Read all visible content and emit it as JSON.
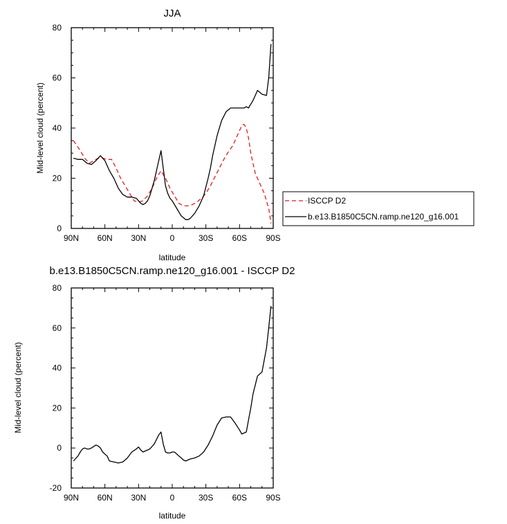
{
  "chart_data": [
    {
      "type": "line",
      "title": "JJA",
      "xlabel": "latitude",
      "ylabel": "Mid-level cloud (percent)",
      "xlim": [
        -90,
        90
      ],
      "ylim": [
        0,
        80
      ],
      "x_ticks": [
        -90,
        -60,
        -30,
        0,
        30,
        60,
        90
      ],
      "x_tick_labels": [
        "90N",
        "60N",
        "30N",
        "0",
        "30S",
        "60S",
        "90S"
      ],
      "y_ticks": [
        0,
        20,
        40,
        60,
        80
      ],
      "y_tick_labels": [
        "0",
        "20",
        "40",
        "60",
        "80"
      ],
      "legend_position": "right",
      "series": [
        {
          "name": "ISCCP D2",
          "color": "#e8191c",
          "dash": "dashed",
          "x": [
            -88,
            -82,
            -78,
            -74,
            -70,
            -66,
            -62,
            -58,
            -54,
            -50,
            -46,
            -42,
            -38,
            -34,
            -30,
            -26,
            -22,
            -18,
            -14,
            -10,
            -6,
            -2,
            2,
            6,
            10,
            14,
            18,
            22,
            26,
            30,
            34,
            38,
            42,
            46,
            50,
            54,
            58,
            62,
            64,
            66,
            68,
            70,
            74,
            78,
            82,
            86,
            88
          ],
          "values": [
            35,
            31,
            28,
            26,
            27,
            28,
            28,
            27.5,
            27.5,
            24,
            20,
            17,
            14,
            11,
            10.5,
            11,
            13,
            16,
            20,
            23,
            20,
            16,
            13,
            10,
            9,
            9,
            9.5,
            10.5,
            12,
            14,
            17,
            20.5,
            24,
            27.5,
            30.5,
            33,
            37,
            41,
            41.5,
            40,
            36,
            30,
            22,
            18,
            14,
            8,
            2
          ]
        },
        {
          "name": "b.e13.B1850C5CN.ramp.ne120_g16.001",
          "color": "#000000",
          "dash": "solid",
          "x": [
            -88,
            -84,
            -80,
            -76,
            -72,
            -68,
            -64,
            -60,
            -56,
            -52,
            -48,
            -44,
            -40,
            -36,
            -32,
            -28,
            -26,
            -24,
            -22,
            -20,
            -16,
            -12,
            -10,
            -8,
            -6,
            -4,
            -2,
            0,
            4,
            8,
            12,
            14,
            16,
            20,
            24,
            28,
            32,
            34,
            36,
            40,
            44,
            48,
            52,
            56,
            60,
            64,
            66,
            68,
            72,
            76,
            80,
            84,
            86,
            88
          ],
          "values": [
            28,
            27.5,
            27.5,
            26,
            25.5,
            27,
            29,
            27,
            23,
            20,
            16,
            13.5,
            12.5,
            12.5,
            12,
            10,
            9.5,
            10,
            11,
            13,
            19,
            27,
            31,
            24,
            17,
            14,
            12,
            11,
            8,
            5,
            3.5,
            3.5,
            4,
            6,
            9,
            13,
            20,
            24,
            29,
            37,
            43,
            46.5,
            48,
            48,
            48,
            48,
            48.5,
            48,
            51,
            55,
            53.5,
            53,
            60,
            73.5
          ]
        }
      ]
    },
    {
      "type": "line",
      "title": "b.e13.B1850C5CN.ramp.ne120_g16.001 - ISCCP D2",
      "xlabel": "latitude",
      "ylabel": "Mid-level cloud (percent)",
      "xlim": [
        -90,
        90
      ],
      "ylim": [
        -20,
        80
      ],
      "x_ticks": [
        -90,
        -60,
        -30,
        0,
        30,
        60,
        90
      ],
      "x_tick_labels": [
        "90N",
        "60N",
        "30N",
        "0",
        "30S",
        "60S",
        "90S"
      ],
      "y_ticks": [
        -20,
        0,
        20,
        40,
        60,
        80
      ],
      "y_tick_labels": [
        "-20",
        "0",
        "20",
        "40",
        "60",
        "80"
      ],
      "series": [
        {
          "color": "#000000",
          "dash": "solid",
          "x": [
            -88,
            -84,
            -82,
            -80,
            -78,
            -76,
            -74,
            -72,
            -68,
            -66,
            -64,
            -62,
            -58,
            -56,
            -52,
            -48,
            -44,
            -40,
            -36,
            -32,
            -30,
            -28,
            -26,
            -24,
            -22,
            -20,
            -16,
            -12,
            -10,
            -8,
            -6,
            -4,
            -2,
            0,
            2,
            4,
            6,
            8,
            10,
            12,
            14,
            16,
            20,
            24,
            28,
            32,
            36,
            40,
            44,
            48,
            52,
            56,
            60,
            62,
            64,
            66,
            68,
            70,
            72,
            76,
            80,
            84,
            86,
            88
          ],
          "values": [
            -6.5,
            -4,
            -2,
            -0.5,
            0,
            -0.5,
            -0.5,
            0,
            1.5,
            1,
            0,
            -2,
            -4,
            -6.5,
            -7,
            -7.5,
            -7,
            -5,
            -2,
            -0.5,
            0.5,
            -1,
            -2,
            -1.5,
            -1,
            -0.5,
            2,
            6.5,
            8,
            2,
            -2,
            -2.5,
            -2.5,
            -2,
            -2,
            -3,
            -4,
            -5,
            -6,
            -6.5,
            -6,
            -5.5,
            -5,
            -4,
            -2,
            1.5,
            6,
            11.5,
            15,
            15.5,
            15.5,
            12.5,
            9,
            7,
            7.5,
            8,
            14,
            20,
            27,
            36,
            38,
            50,
            60,
            71
          ]
        }
      ]
    }
  ]
}
